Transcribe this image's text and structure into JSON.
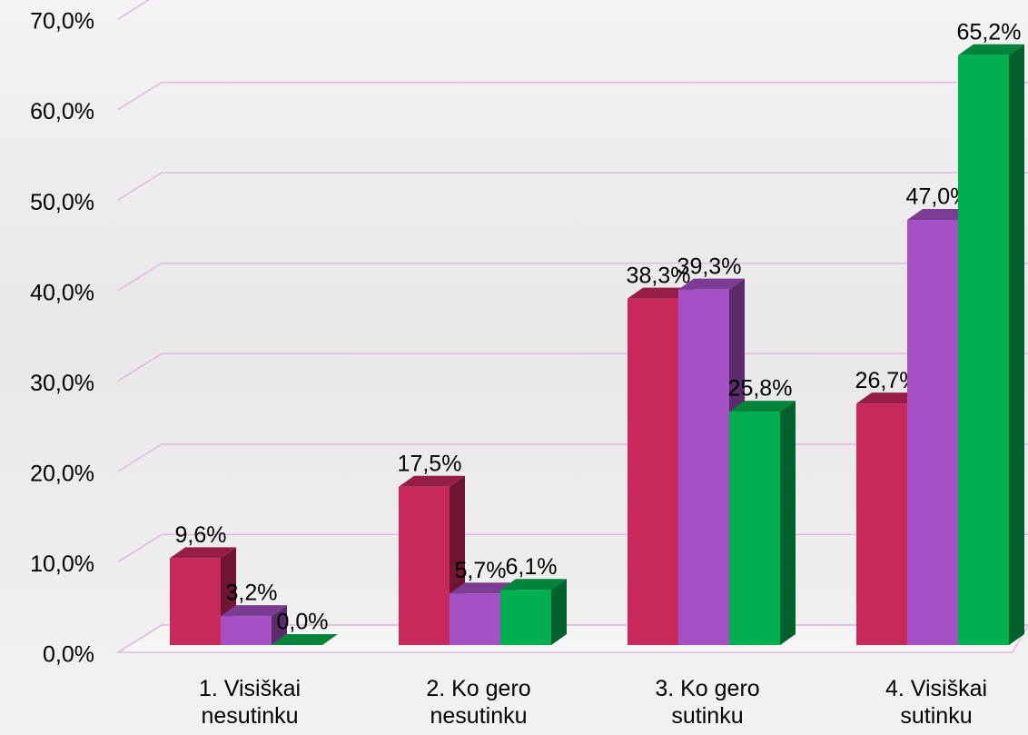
{
  "chart_data": {
    "type": "bar3d",
    "categories": [
      "1. Visiškai nesutinku",
      "2. Ko gero nesutinku",
      "3. Ko gero sutinku",
      "4. Visiškai sutinku"
    ],
    "series": [
      {
        "color": "#c8285a",
        "values": [
          9.6,
          17.5,
          38.3,
          26.7
        ],
        "value_labels": [
          "9,6%",
          "17,5%",
          "38,3%",
          "26,7%"
        ]
      },
      {
        "color": "#a550c4",
        "values": [
          3.2,
          5.7,
          39.3,
          47.0
        ],
        "value_labels": [
          "3,2%",
          "5,7%",
          "39,3%",
          "47,0%"
        ]
      },
      {
        "color": "#00b050",
        "values": [
          0.0,
          6.1,
          25.8,
          65.2
        ],
        "value_labels": [
          "0,0%",
          "6,1%",
          "25,8%",
          "65,2%"
        ]
      }
    ],
    "ylim": [
      0,
      70
    ],
    "yticks": [
      {
        "value": 0,
        "label": "0,0%"
      },
      {
        "value": 10,
        "label": "10,0%"
      },
      {
        "value": 20,
        "label": "20,0%"
      },
      {
        "value": 30,
        "label": "30,0%"
      },
      {
        "value": 40,
        "label": "40,0%"
      },
      {
        "value": 50,
        "label": "50,0%"
      },
      {
        "value": 60,
        "label": "60,0%"
      },
      {
        "value": 70,
        "label": "70,0%"
      }
    ],
    "grid": true
  }
}
